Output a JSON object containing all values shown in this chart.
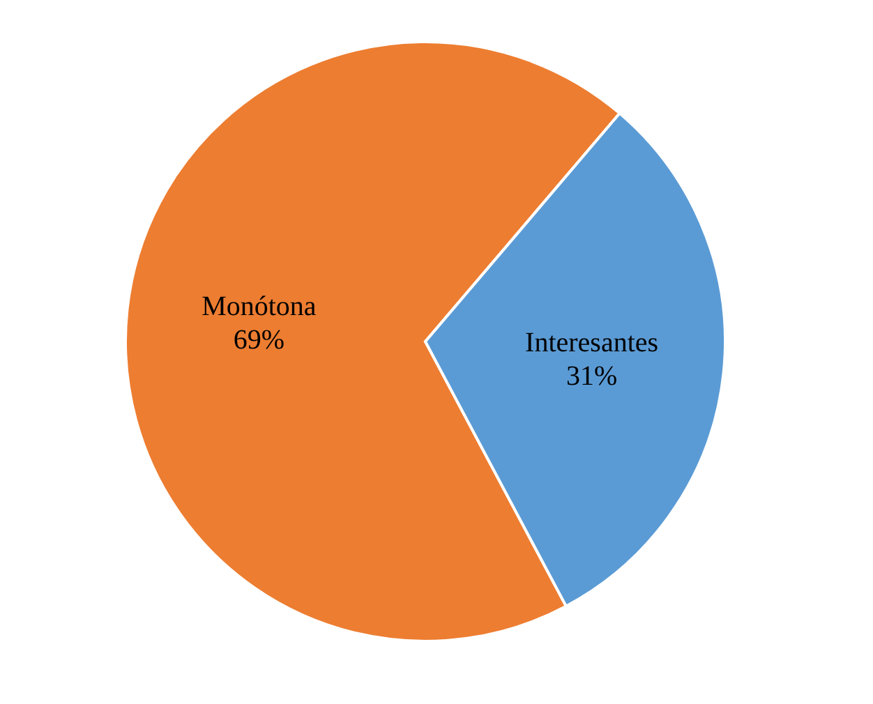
{
  "chart_data": {
    "type": "pie",
    "categories": [
      "Monótona",
      "Interesantes"
    ],
    "values": [
      69,
      31
    ],
    "value_labels": [
      "69%",
      "31%"
    ],
    "colors": [
      "#ed7d31",
      "#5b9bd5"
    ],
    "legend": false
  }
}
